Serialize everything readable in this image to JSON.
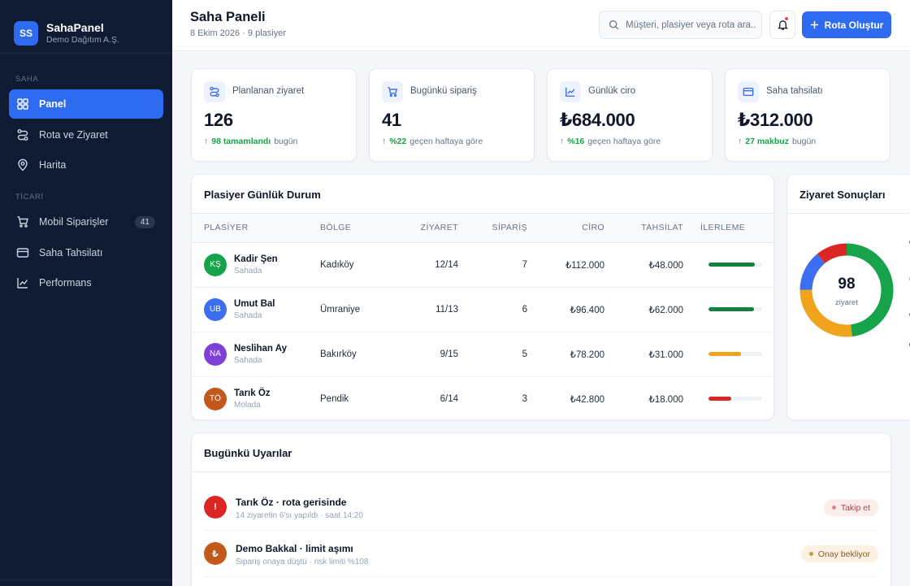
{
  "brand": {
    "logo": "SS",
    "name": "SahaPanel",
    "company": "Demo Dağıtım A.Ş."
  },
  "sidebar": {
    "section_saha": "SAHA",
    "section_ticari": "TİCARİ",
    "items": [
      {
        "label": "Panel",
        "icon": "grid-icon",
        "active": true
      },
      {
        "label": "Rota ve Ziyaret",
        "icon": "route-icon"
      },
      {
        "label": "Harita",
        "icon": "map-pin-icon"
      },
      {
        "label": "Mobil Siparişler",
        "icon": "cart-icon",
        "badge": "41"
      },
      {
        "label": "Saha Tahsilatı",
        "icon": "card-icon"
      },
      {
        "label": "Performans",
        "icon": "chart-line-icon"
      }
    ]
  },
  "header": {
    "title": "Saha Paneli",
    "subtitle": "8 Ekim 2026 · 9 plasiyer",
    "search_placeholder": "Müşteri, plasiyer veya rota ara...",
    "cta_label": "Rota Oluştur"
  },
  "stats": [
    {
      "label": "Planlanan ziyaret",
      "value": "126",
      "trend_strong": "98 tamamlandı",
      "trend_rest": "bugün",
      "icon": "route-icon"
    },
    {
      "label": "Bugünkü sipariş",
      "value": "41",
      "trend_strong": "%22",
      "trend_rest": "geçen haftaya göre",
      "icon": "cart-icon"
    },
    {
      "label": "Günlük ciro",
      "value": "₺684.000",
      "trend_strong": "%16",
      "trend_rest": "geçen haftaya göre",
      "icon": "chart-line-icon"
    },
    {
      "label": "Saha tahsilatı",
      "value": "₺312.000",
      "trend_strong": "27 makbuz",
      "trend_rest": "bugün",
      "icon": "card-icon"
    }
  ],
  "table": {
    "title": "Plasiyer Günlük Durum",
    "columns": [
      "PLASİYER",
      "BÖLGE",
      "ZİYARET",
      "SİPARİŞ",
      "CİRO",
      "TAHSİLAT",
      "İLERLEME"
    ],
    "rows": [
      {
        "initials": "KŞ",
        "name": "Kadir Şen",
        "status": "Sahada",
        "region": "Kadıköy",
        "visits": "12/14",
        "orders": "7",
        "revenue": "₺112.000",
        "collection": "₺48.000",
        "progress": 0.86,
        "avatar_color": "#16a34a",
        "bar_color": "#15803d"
      },
      {
        "initials": "UB",
        "name": "Umut Bal",
        "status": "Sahada",
        "region": "Ümraniye",
        "visits": "11/13",
        "orders": "6",
        "revenue": "₺96.400",
        "collection": "₺62.000",
        "progress": 0.85,
        "avatar_color": "#3b6ef0",
        "bar_color": "#15803d"
      },
      {
        "initials": "NA",
        "name": "Neslihan Ay",
        "status": "Sahada",
        "region": "Bakırköy",
        "visits": "9/15",
        "orders": "5",
        "revenue": "₺78.200",
        "collection": "₺31.000",
        "progress": 0.6,
        "avatar_color": "#7e3fd6",
        "bar_color": "#f0a41c"
      },
      {
        "initials": "TÖ",
        "name": "Tarık Öz",
        "status": "Molada",
        "region": "Pendik",
        "visits": "6/14",
        "orders": "3",
        "revenue": "₺42.800",
        "collection": "₺18.000",
        "progress": 0.43,
        "avatar_color": "#c2581a",
        "bar_color": "#dc2626"
      }
    ]
  },
  "donut": {
    "title": "Ziyaret Sonuçları",
    "total": "98",
    "total_label": "ziyaret",
    "segments": [
      {
        "value": 0.48,
        "color": "#16a34a"
      },
      {
        "value": 0.27,
        "color": "#f0a41c"
      },
      {
        "value": 0.14,
        "color": "#3b6ef0"
      },
      {
        "value": 0.11,
        "color": "#dc2626"
      }
    ]
  },
  "alerts": {
    "title": "Bugünkü Uyarılar",
    "items": [
      {
        "icon_text": "!",
        "icon_color": "#dc2626",
        "title": "Tarık Öz · rota gerisinde",
        "sub": "14 ziyaretin 6'sı yapıldı · saat 14:20",
        "pill": "Takip et",
        "pill_bg": "#fdecec",
        "pill_fg": "#9f4a4a",
        "pill_dot": "#d68a8a"
      },
      {
        "icon_text": "₺",
        "icon_color": "#c2581a",
        "title": "Demo Bakkal · limit aşımı",
        "sub": "Sipariş onaya düştü · risk limiti %108",
        "pill": "Onay bekliyor",
        "pill_bg": "#fdf1e3",
        "pill_fg": "#8a5a1f",
        "pill_dot": "#c9964f"
      }
    ]
  }
}
